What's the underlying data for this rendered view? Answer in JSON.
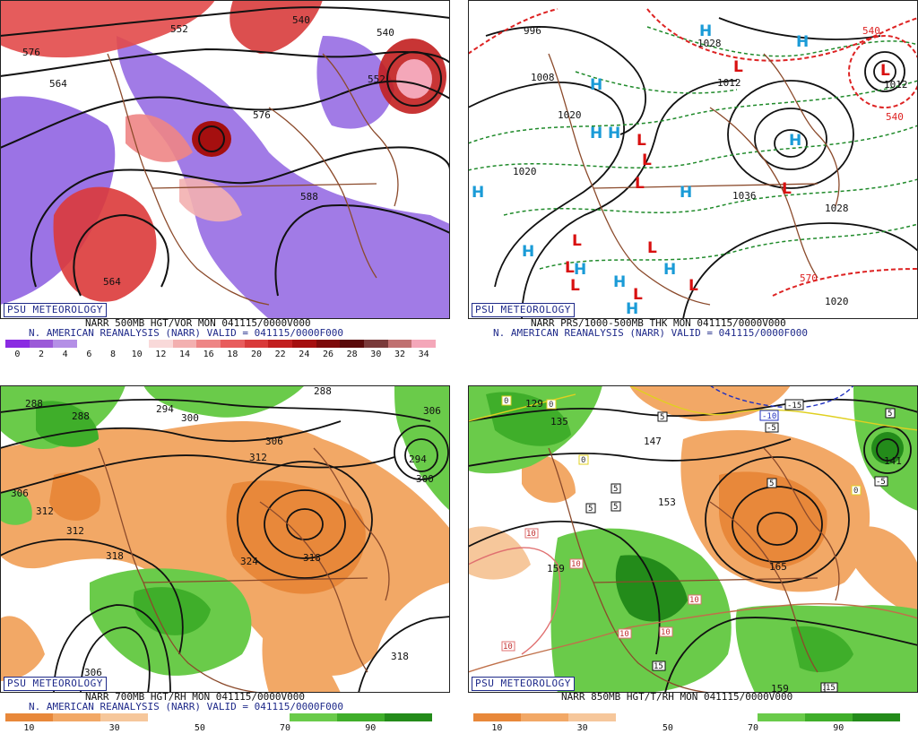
{
  "credit": "PSU METEOROLOGY",
  "panels": {
    "p1": {
      "caption1": "NARR 500MB HGT/VOR MON 041115/0000V000",
      "caption2": "N. AMERICAN REANALYSIS (NARR) VALID = 041115/0000F000",
      "colorbar_ticks": [
        "0",
        "2",
        "4",
        "6",
        "8",
        "10",
        "12",
        "14",
        "16",
        "18",
        "20",
        "22",
        "24",
        "26",
        "28",
        "30",
        "32",
        "34"
      ],
      "colorbar_colors": [
        "#8a2be2",
        "#9b59d8",
        "#b48fe6",
        "#ffffff",
        "#ffffff",
        "#ffffff",
        "#f9d9d9",
        "#f3b0b0",
        "#ee8585",
        "#e85c5c",
        "#d93a3a",
        "#c21f1f",
        "#a50f0f",
        "#7d0a0a",
        "#5a0a0a",
        "#7a3a3a",
        "#c07070",
        "#f4a7b9"
      ],
      "height_labels": [
        "540",
        "552",
        "564",
        "576",
        "588",
        "564",
        "540",
        "552",
        "576"
      ]
    },
    "p2": {
      "caption1": "NARR PRS/1000-500MB THK MON 041115/0000V000",
      "caption2": "N. AMERICAN REANALYSIS (NARR) VALID = 041115/0000F000",
      "pressure_labels": [
        "996",
        "1008",
        "1020",
        "1020",
        "1028",
        "1036",
        "1028",
        "1020",
        "1012"
      ],
      "thickness_labels": [
        "540",
        "570",
        "570",
        "540",
        "540"
      ]
    },
    "p3": {
      "caption1": "NARR 700MB HGT/RH MON 041115/0000V000",
      "caption2": "N. AMERICAN REANALYSIS (NARR) VALID = 041115/0000F000",
      "colorbar_ticks": [
        "10",
        "30",
        "50",
        "70",
        "90"
      ],
      "colorbar_colors": [
        "#e8883a",
        "#f2a866",
        "#f6c79b",
        "#ffffff",
        "#ffffff",
        "#ffffff",
        "#6acb4a",
        "#3fae2a",
        "#238b1a"
      ],
      "height_labels": [
        "288",
        "288",
        "294",
        "300",
        "306",
        "306",
        "312",
        "312",
        "312",
        "318",
        "324",
        "318",
        "306",
        "294",
        "300",
        "306",
        "288"
      ]
    },
    "p4": {
      "caption1": "NARR 850MB HGT/T/RH MON 041115/0000V000",
      "colorbar_ticks": [
        "10",
        "30",
        "50",
        "70",
        "90"
      ],
      "colorbar_colors": [
        "#e8883a",
        "#f2a866",
        "#f6c79b",
        "#ffffff",
        "#ffffff",
        "#ffffff",
        "#6acb4a",
        "#3fae2a",
        "#238b1a"
      ],
      "height_labels": [
        "147",
        "153",
        "159",
        "165",
        "141",
        "159",
        "129",
        "135"
      ],
      "temp_labels": [
        "0",
        "0",
        "0",
        "5",
        "5",
        "5",
        "5",
        "5",
        "10",
        "10",
        "10",
        "10",
        "10",
        "15",
        "15",
        "15",
        "-10",
        "-15",
        "-5",
        "-5",
        "5",
        "0",
        "15"
      ]
    }
  }
}
